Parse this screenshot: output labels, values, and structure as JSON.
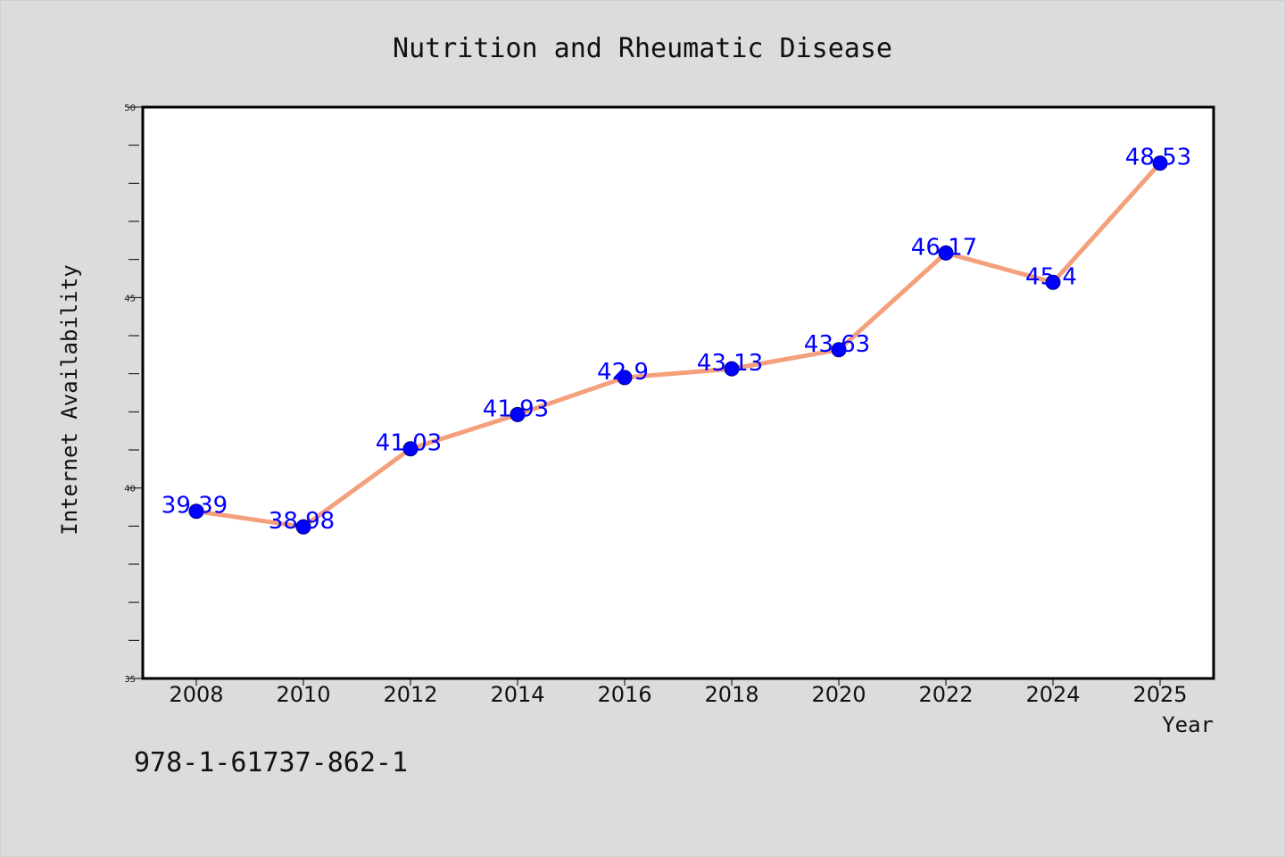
{
  "chart_data": {
    "type": "line",
    "title": "Nutrition and Rheumatic Disease",
    "xlabel": "Year",
    "ylabel": "Internet Availability",
    "x": [
      "2008",
      "2010",
      "2012",
      "2014",
      "2016",
      "2018",
      "2020",
      "2022",
      "2024",
      "2025"
    ],
    "values": [
      39.39,
      38.98,
      41.03,
      41.93,
      42.9,
      43.13,
      43.63,
      46.17,
      45.4,
      48.53
    ],
    "data_labels": [
      "39.39",
      "38.98",
      "41.03",
      "41.93",
      "42.9",
      "43.13",
      "43.63",
      "46.17",
      "45.4",
      "48.53"
    ],
    "ylim": [
      35,
      50
    ],
    "yticks": [
      35,
      40,
      45,
      50
    ],
    "grid": false,
    "line_color": "#f4a07c",
    "marker_color": "#0000ff",
    "label_color": "#0000ff"
  },
  "footer": {
    "isbn": "978-1-61737-862-1"
  },
  "colors": {
    "background": "#dcdcdc",
    "plot_background": "#ffffff"
  }
}
